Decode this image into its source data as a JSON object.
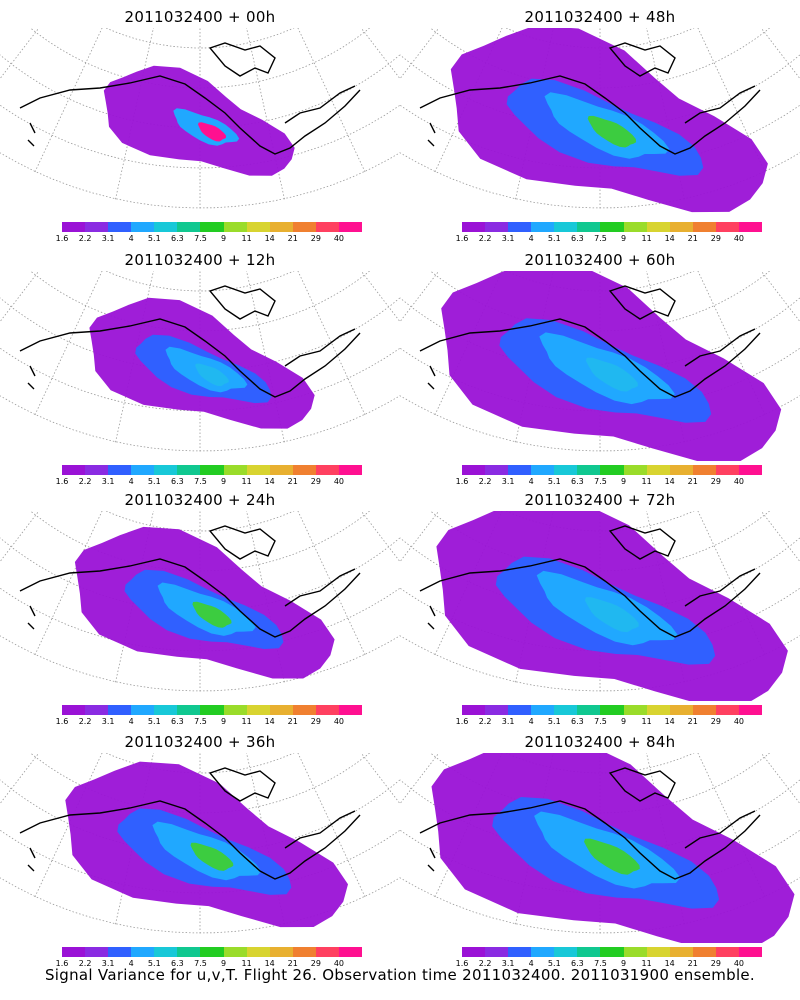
{
  "panels": [
    {
      "title": "2011032400 + 00h",
      "spread": 0.25,
      "peak": "magenta"
    },
    {
      "title": "2011032400 + 48h",
      "spread": 0.8,
      "peak": "green"
    },
    {
      "title": "2011032400 + 12h",
      "spread": 0.4,
      "peak": "cyan"
    },
    {
      "title": "2011032400 + 60h",
      "spread": 0.9,
      "peak": "cyan"
    },
    {
      "title": "2011032400 + 24h",
      "spread": 0.55,
      "peak": "green"
    },
    {
      "title": "2011032400 + 72h",
      "spread": 0.95,
      "peak": "cyan"
    },
    {
      "title": "2011032400 + 36h",
      "spread": 0.65,
      "peak": "green"
    },
    {
      "title": "2011032400 + 84h",
      "spread": 1.0,
      "peak": "green"
    }
  ],
  "legend": {
    "ticks": [
      "1.6",
      "2.2",
      "3.1",
      "4",
      "5.1",
      "6.3",
      "7.5",
      "9",
      "11",
      "14",
      "21",
      "29",
      "40"
    ],
    "colors": [
      "#9a12d6",
      "#8a2be2",
      "#3060ff",
      "#20a8ff",
      "#18c8d8",
      "#10c890",
      "#22cc22",
      "#9adc2a",
      "#d8d430",
      "#e8b030",
      "#f08030",
      "#ff4060",
      "#ff1090"
    ]
  },
  "footer": "Signal Variance for u,v,T. Flight 26. Observation time 2011032400. 2011031900 ensemble."
}
